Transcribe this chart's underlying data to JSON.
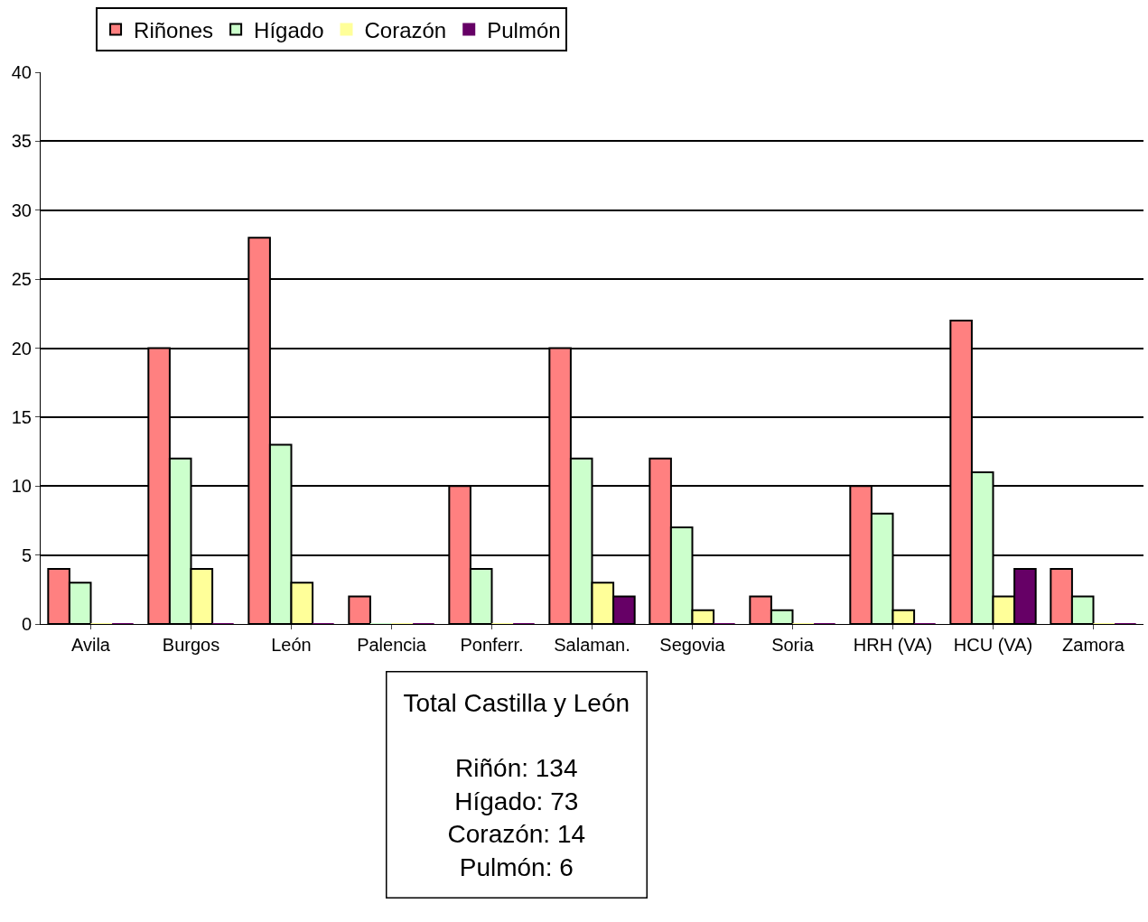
{
  "chart_data": {
    "type": "bar",
    "categories": [
      "Avila",
      "Burgos",
      "León",
      "Palencia",
      "Ponferr.",
      "Salaman.",
      "Segovia",
      "Soria",
      "HRH (VA)",
      "HCU (VA)",
      "Zamora"
    ],
    "series": [
      {
        "name": "Riñones",
        "color": "#ff8080",
        "values": [
          4,
          20,
          28,
          2,
          10,
          20,
          12,
          2,
          10,
          22,
          4
        ]
      },
      {
        "name": "Hígado",
        "color": "#ccffcc",
        "values": [
          3,
          12,
          13,
          0,
          4,
          12,
          7,
          1,
          8,
          11,
          2
        ]
      },
      {
        "name": "Corazón",
        "color": "#ffff99",
        "values": [
          0,
          4,
          3,
          0,
          0,
          3,
          1,
          0,
          1,
          2,
          0
        ]
      },
      {
        "name": "Pulmón",
        "color": "#660066",
        "values": [
          0,
          0,
          0,
          0,
          0,
          2,
          0,
          0,
          0,
          4,
          0
        ]
      }
    ],
    "ylim": [
      0,
      40
    ],
    "yticks": [
      0,
      5,
      10,
      15,
      20,
      25,
      30,
      35,
      40
    ],
    "grid": "y",
    "legend": "top left",
    "annotations": [
      "Total Castilla y León\n\nRiñón: 134\nHígado: 73\nCorazón: 14\nPulmón: 6"
    ]
  }
}
